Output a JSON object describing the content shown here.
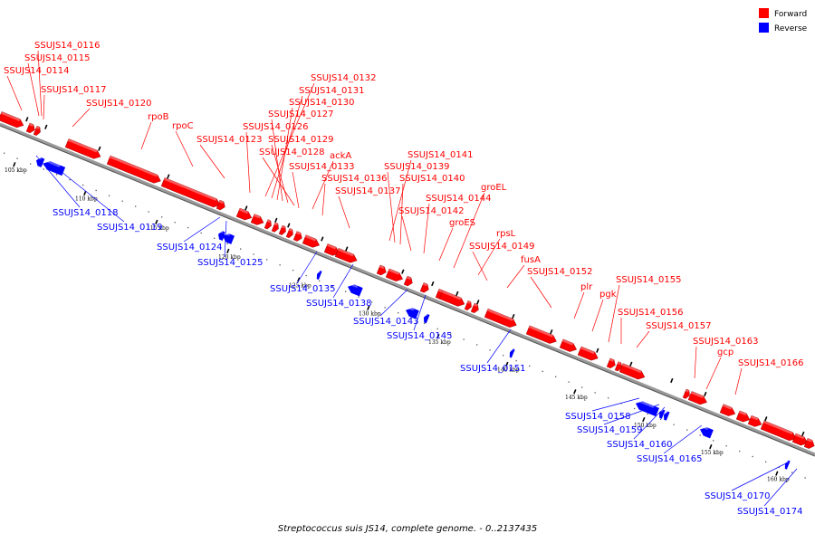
{
  "caption": "Streptococcus suis JS14, complete genome. - 0..2137435",
  "legend": {
    "forward": {
      "label": "Forward",
      "color": "#ff0000"
    },
    "reverse": {
      "label": "Reverse",
      "color": "#0000ff"
    }
  },
  "ticks": [
    "105 kbp",
    "110 kbp",
    "115 kbp",
    "120 kbp",
    "125 kbp",
    "130 kbp",
    "135 kbp",
    "140 kbp",
    "145 kbp",
    "150 kbp",
    "155 kbp",
    "160 kbp"
  ],
  "forward_labels": [
    "SSUJS14_0116",
    "SSUJS14_0115",
    "SSUJS14_0114",
    "SSUJS14_0117",
    "SSUJS14_0120",
    "rpoB",
    "rpoC",
    "SSUJS14_0123",
    "SSUJS14_0132",
    "SSUJS14_0131",
    "SSUJS14_0130",
    "SSUJS14_0127",
    "SSUJS14_0126",
    "SSUJS14_0129",
    "SSUJS14_0128",
    "ackA",
    "SSUJS14_0133",
    "SSUJS14_0136",
    "SSUJS14_0137",
    "SSUJS14_0141",
    "SSUJS14_0139",
    "SSUJS14_0140",
    "SSUJS14_0144",
    "SSUJS14_0142",
    "groEL",
    "groES",
    "rpsL",
    "SSUJS14_0149",
    "fusA",
    "SSUJS14_0152",
    "plr",
    "pgk",
    "SSUJS14_0155",
    "SSUJS14_0156",
    "SSUJS14_0157",
    "SSUJS14_0163",
    "gcp",
    "SSUJS14_0166"
  ],
  "reverse_labels": [
    "SSUJS14_0118",
    "SSUJS14_0119",
    "SSUJS14_0124",
    "SSUJS14_0125",
    "SSUJS14_0135",
    "SSUJS14_0138",
    "SSUJS14_0143",
    "SSUJS14_0145",
    "SSUJS14_0151",
    "SSUJS14_0158",
    "SSUJS14_0159",
    "SSUJS14_0160",
    "SSUJS14_0165",
    "SSUJS14_0170",
    "SSUJS14_0174"
  ]
}
